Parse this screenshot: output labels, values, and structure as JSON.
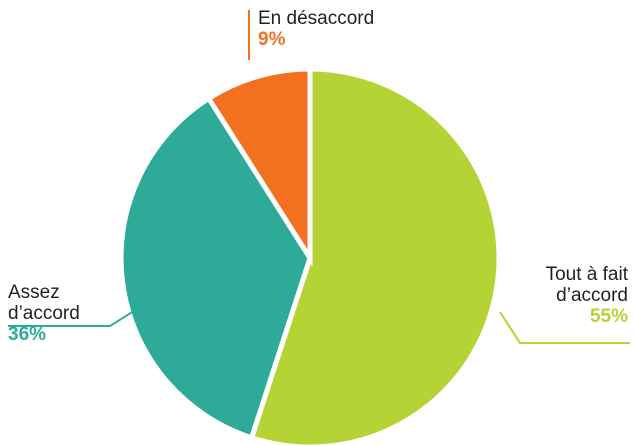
{
  "chart_data": {
    "type": "pie",
    "categories": [
      "Tout à fait d’accord",
      "Assez d’accord",
      "En désaccord"
    ],
    "values": [
      55,
      36,
      9
    ],
    "value_labels": [
      "55%",
      "36%",
      "9%"
    ],
    "colors": [
      "#b5d334",
      "#2eab98",
      "#f37021"
    ]
  }
}
